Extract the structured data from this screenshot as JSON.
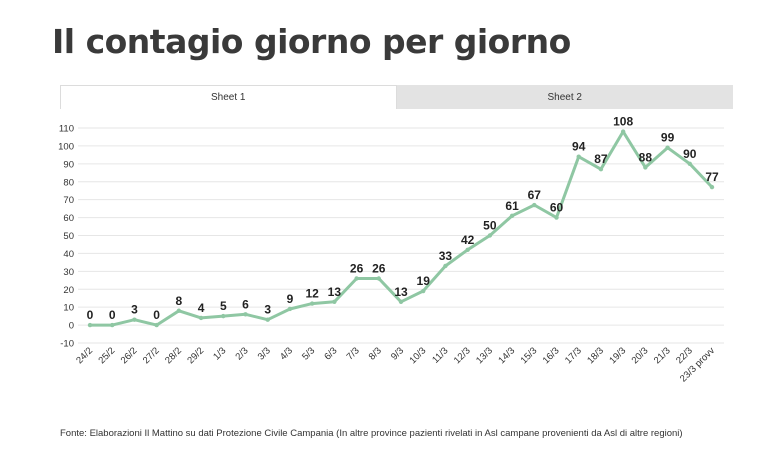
{
  "title": "Il contagio giorno per giorno",
  "tabs": [
    {
      "label": "Sheet 1",
      "active": true
    },
    {
      "label": "Sheet 2",
      "active": false
    }
  ],
  "source": "Fonte: Elaborazioni Il Mattino su dati Protezione Civile Campania (In altre province pazienti rivelati in Asl campane provenienti da Asl di altre regioni)",
  "chart_data": {
    "type": "line",
    "title": "",
    "xlabel": "",
    "ylabel": "",
    "ylim": [
      -10,
      110
    ],
    "yticks": [
      -10,
      0,
      10,
      20,
      30,
      40,
      50,
      60,
      70,
      80,
      90,
      100,
      110
    ],
    "grid": true,
    "line_color": "#8fc7a3",
    "categories": [
      "24/2",
      "25/2",
      "26/2",
      "27/2",
      "28/2",
      "29/2",
      "1/3",
      "2/3",
      "3/3",
      "4/3",
      "5/3",
      "6/3",
      "7/3",
      "8/3",
      "9/3",
      "10/3",
      "11/3",
      "12/3",
      "13/3",
      "14/3",
      "15/3",
      "16/3",
      "17/3",
      "18/3",
      "19/3",
      "20/3",
      "21/3",
      "22/3",
      "23/3 provv"
    ],
    "series": [
      {
        "values": [
          0,
          0,
          3,
          0,
          8,
          4,
          5,
          6,
          3,
          9,
          12,
          13,
          26,
          26,
          13,
          19,
          33,
          42,
          50,
          61,
          67,
          60,
          94,
          87,
          108,
          88,
          99,
          90,
          77
        ]
      }
    ]
  }
}
